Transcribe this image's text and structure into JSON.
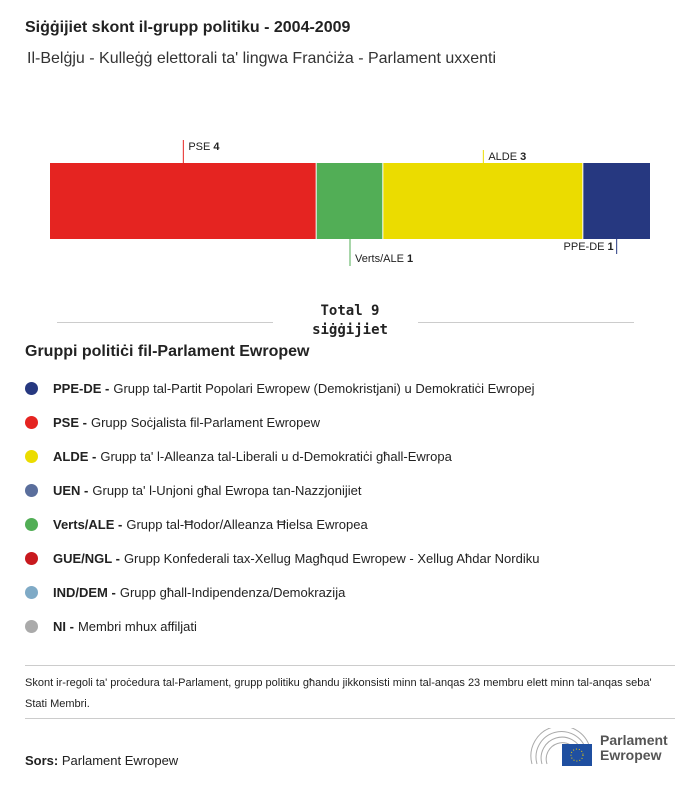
{
  "header": {
    "title": "Siġġijiet skont il-grupp politiku - 2004-2009",
    "subtitle": "Il-Belġju - Kulleġġ elettorali ta' lingwa Franċiża - Parlament uxxenti"
  },
  "chart_data": {
    "type": "bar",
    "orientation": "stacked-horizontal",
    "categories": [
      "PSE",
      "Verts/ALE",
      "ALDE",
      "PPE-DE"
    ],
    "values": [
      4,
      1,
      3,
      1
    ],
    "colors": [
      "#e52421",
      "#52ae56",
      "#ebdc00",
      "#263880"
    ],
    "total_label": "Total 9 siġġijiet"
  },
  "legend": {
    "title": "Gruppi politiċi fil-Parlament Ewropew",
    "items": [
      {
        "abbr": "PPE-DE -",
        "desc": "Grupp tal-Partit Popolari Ewropew (Demokristjani) u Demokratiċi Ewropej",
        "color": "#263880"
      },
      {
        "abbr": "PSE -",
        "desc": "Grupp Soċjalista fil-Parlament Ewropew",
        "color": "#e52421"
      },
      {
        "abbr": "ALDE -",
        "desc": "Grupp ta' l-Alleanza tal-Liberali u d-Demokratiċi għall-Ewropa",
        "color": "#ebdc00"
      },
      {
        "abbr": "UEN -",
        "desc": "Grupp ta' l-Unjoni għal Ewropa tan-Nazzjonijiet",
        "color": "#5a6e9c"
      },
      {
        "abbr": "Verts/ALE -",
        "desc": "Grupp tal-Ħodor/Alleanza Ħielsa Ewropea",
        "color": "#52ae56"
      },
      {
        "abbr": "GUE/NGL -",
        "desc": "Grupp Konfederali tax-Xellug Magħqud Ewropew - Xellug Aħdar Nordiku",
        "color": "#c8191e"
      },
      {
        "abbr": "IND/DEM -",
        "desc": "Grupp għall-Indipendenza/Demokrazija",
        "color": "#7faac6"
      },
      {
        "abbr": "NI -",
        "desc": "Membri mhux affiljati",
        "color": "#aaaaaa"
      }
    ]
  },
  "footer": {
    "note": "Skont ir-regoli ta' proċedura tal-Parlament, grupp politiku għandu jikkonsisti minn tal-anqas 23 membru elett minn tal-anqas seba' Stati Membri.",
    "source_label": "Sors:",
    "source": "Parlament Ewropew",
    "logo_text": [
      "Parlament",
      "Ewropew"
    ]
  }
}
